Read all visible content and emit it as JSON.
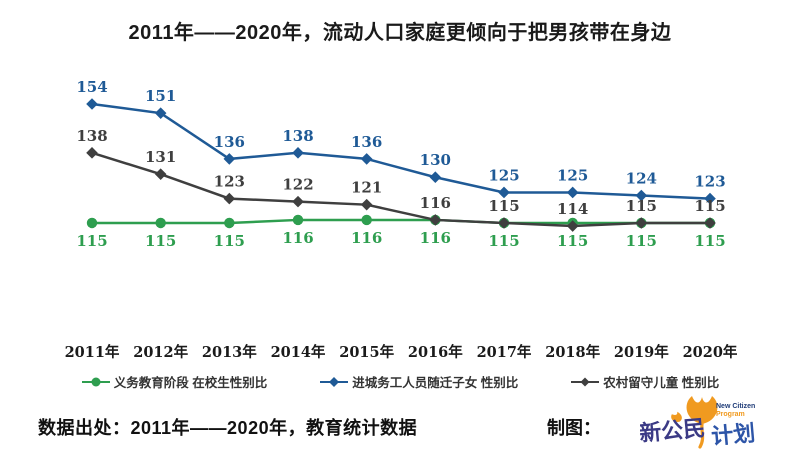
{
  "title": "2011年——2020年，流动人口家庭更倾向于把男孩带在身边",
  "chart_data": {
    "type": "line",
    "title": "2011年——2020年，流动人口家庭更倾向于把男孩带在身边",
    "categories": [
      "2011年",
      "2012年",
      "2013年",
      "2014年",
      "2015年",
      "2016年",
      "2017年",
      "2018年",
      "2019年",
      "2020年"
    ],
    "series": [
      {
        "name": "义务教育阶段 在校生性别比",
        "color": "#2E9E4F",
        "marker": "circle",
        "label_position": "below",
        "values": [
          115,
          115,
          115,
          116,
          116,
          116,
          115,
          115,
          115,
          115
        ]
      },
      {
        "name": "进城务工人员随迁子女 性别比",
        "color": "#1F5A96",
        "marker": "diamond",
        "label_position": "above",
        "values": [
          154,
          151,
          136,
          138,
          136,
          130,
          125,
          125,
          124,
          123
        ]
      },
      {
        "name": "农村留守儿童 性别比",
        "color": "#3F3F3F",
        "marker": "diamond",
        "label_position": "above",
        "values": [
          138,
          131,
          123,
          122,
          121,
          116,
          115,
          114,
          115,
          115
        ]
      }
    ],
    "ylim": [
      110,
      158
    ],
    "grid": false,
    "data_labels": true,
    "legend_position": "bottom",
    "axes_visible": false
  },
  "footer": {
    "source": "数据出处：2011年——2020年，教育统计数据",
    "credit_label": "制图：",
    "logo": {
      "cn_part1": "新公民",
      "cn_part2": "计划",
      "en_line1": "New Citizen",
      "en_line2": "Program",
      "leaf_color": "#F09A20",
      "cn1_color": "#3B3A85",
      "cn2_color": "#2D55A8"
    }
  }
}
